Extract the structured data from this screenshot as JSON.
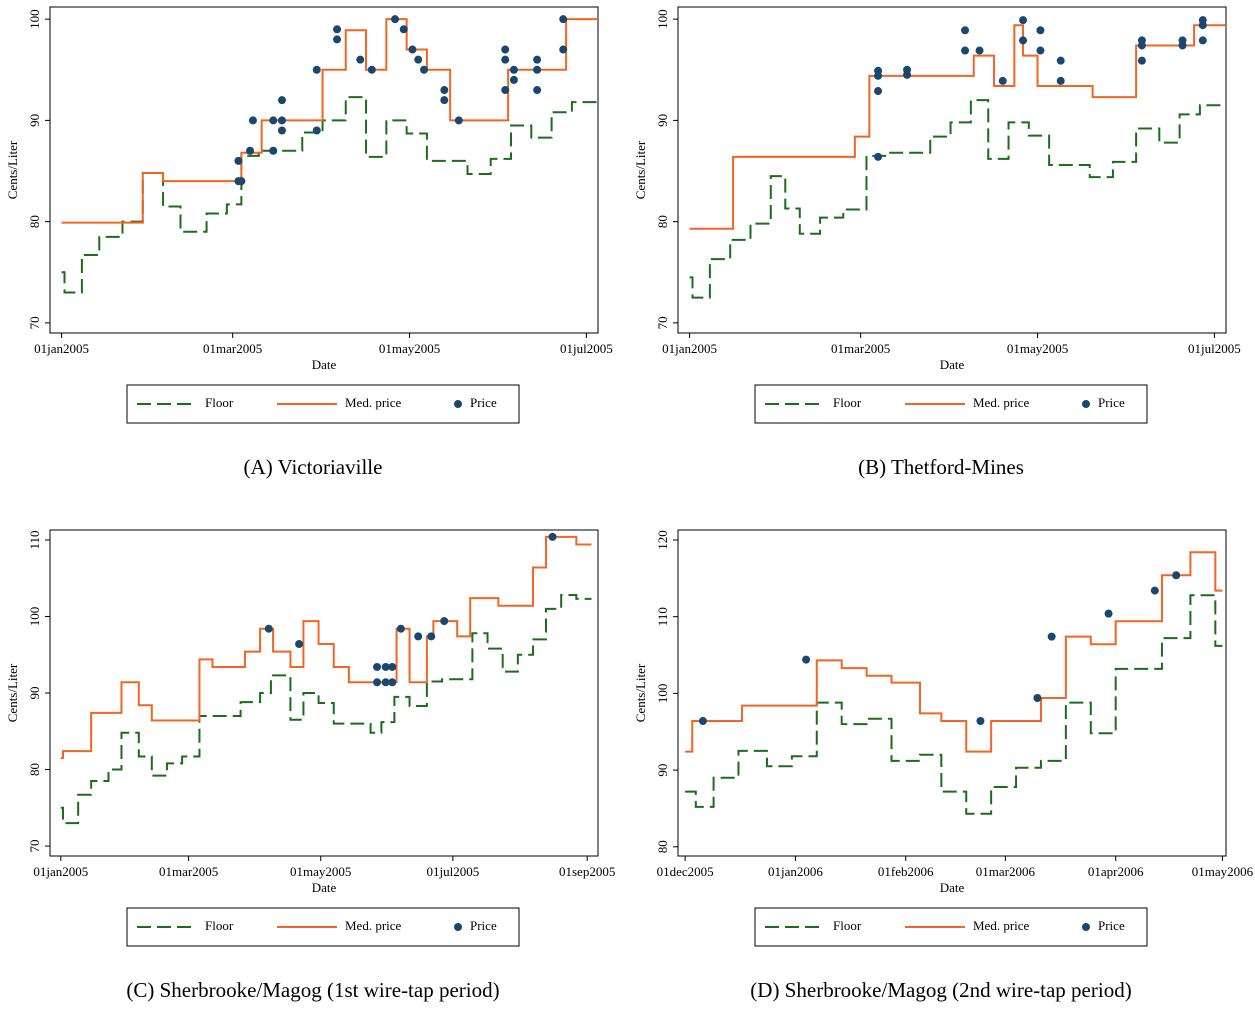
{
  "chart_data": [
    {
      "type": "line",
      "title": "(A) Victoriaville",
      "xlabel": "Date",
      "ylabel": "Cents/Liter",
      "legend": "bottom",
      "xlim": [
        "2004-12-28",
        "2005-07-05"
      ],
      "ylim": [
        69,
        101.2
      ],
      "xticks": [
        {
          "value": "2005-01-01",
          "label": "01jan2005"
        },
        {
          "value": "2005-03-01",
          "label": "01mar2005"
        },
        {
          "value": "2005-05-01",
          "label": "01may2005"
        },
        {
          "value": "2005-07-01",
          "label": "01jul2005"
        }
      ],
      "yticks": [
        70,
        80,
        90,
        100
      ],
      "series": [
        {
          "name": "Floor",
          "color": "#1a6e1a",
          "style": "dash-step",
          "x": [
            "2005-01-01",
            "2005-01-02",
            "2005-01-08",
            "2005-01-14",
            "2005-01-22",
            "2005-01-29",
            "2005-02-05",
            "2005-02-11",
            "2005-02-20",
            "2005-02-27",
            "2005-03-04",
            "2005-03-10",
            "2005-03-25",
            "2005-04-01",
            "2005-04-09",
            "2005-04-16",
            "2005-04-23",
            "2005-04-30",
            "2005-05-07",
            "2005-05-21",
            "2005-05-29",
            "2005-06-05",
            "2005-06-12",
            "2005-06-19",
            "2005-06-26",
            "2005-07-05"
          ],
          "values": [
            75,
            73,
            76.7,
            78.5,
            80,
            84.8,
            81.5,
            79,
            80.8,
            81.7,
            86.5,
            87,
            88.8,
            90,
            92.3,
            86.4,
            90,
            88.7,
            86,
            84.7,
            86.2,
            89.5,
            88.3,
            90.8,
            91.8,
            91.8
          ]
        },
        {
          "name": "Med. price",
          "color": "#f26522",
          "style": "step",
          "x": [
            "2005-01-01",
            "2005-01-29",
            "2005-02-05",
            "2005-03-04",
            "2005-03-11",
            "2005-04-01",
            "2005-04-09",
            "2005-04-16",
            "2005-04-23",
            "2005-04-30",
            "2005-05-07",
            "2005-05-15",
            "2005-06-04",
            "2005-06-24",
            "2005-07-05"
          ],
          "values": [
            79.9,
            84.8,
            84,
            86.8,
            90,
            95,
            98.9,
            95,
            100,
            97,
            95,
            90,
            95,
            100,
            100
          ]
        },
        {
          "name": "Price",
          "color": "#1a476f",
          "style": "dot",
          "x": [
            "2005-03-03",
            "2005-03-04",
            "2005-03-03",
            "2005-03-08",
            "2005-03-07",
            "2005-03-15",
            "2005-03-15",
            "2005-03-18",
            "2005-03-18",
            "2005-03-18",
            "2005-03-30",
            "2005-03-30",
            "2005-04-06",
            "2005-04-06",
            "2005-04-14",
            "2005-04-18",
            "2005-04-26",
            "2005-04-29",
            "2005-05-02",
            "2005-05-04",
            "2005-05-06",
            "2005-05-13",
            "2005-05-13",
            "2005-05-18",
            "2005-06-03",
            "2005-06-03",
            "2005-06-03",
            "2005-06-06",
            "2005-06-06",
            "2005-06-14",
            "2005-06-14",
            "2005-06-14",
            "2005-06-23",
            "2005-06-23"
          ],
          "values": [
            84,
            84,
            86,
            90,
            87,
            90,
            87,
            92,
            90,
            89,
            95,
            89,
            99,
            98,
            96,
            95,
            100,
            99,
            97,
            96,
            95,
            93,
            92,
            90,
            97,
            96,
            93,
            95,
            94,
            96,
            95,
            93,
            100,
            97
          ]
        }
      ]
    },
    {
      "type": "line",
      "title": "(B) Thetford-Mines",
      "xlabel": "Date",
      "ylabel": "Cents/Liter",
      "legend": "bottom",
      "xlim": [
        "2004-12-28",
        "2005-07-05"
      ],
      "ylim": [
        69,
        101.2
      ],
      "xticks": [
        {
          "value": "2005-01-01",
          "label": "01jan2005"
        },
        {
          "value": "2005-03-01",
          "label": "01mar2005"
        },
        {
          "value": "2005-05-01",
          "label": "01may2005"
        },
        {
          "value": "2005-07-01",
          "label": "01jul2005"
        }
      ],
      "yticks": [
        70,
        80,
        90,
        100
      ],
      "series": [
        {
          "name": "Floor",
          "color": "#1a6e1a",
          "style": "dash-step",
          "x": [
            "2005-01-01",
            "2005-01-02",
            "2005-01-08",
            "2005-01-15",
            "2005-01-22",
            "2005-01-29",
            "2005-02-03",
            "2005-02-08",
            "2005-02-15",
            "2005-02-23",
            "2005-03-03",
            "2005-03-10",
            "2005-03-25",
            "2005-04-01",
            "2005-04-08",
            "2005-04-14",
            "2005-04-21",
            "2005-04-28",
            "2005-05-05",
            "2005-05-19",
            "2005-05-27",
            "2005-06-04",
            "2005-06-12",
            "2005-06-19",
            "2005-06-26",
            "2005-07-05"
          ],
          "values": [
            74.5,
            72.5,
            76.3,
            78.2,
            79.8,
            84.5,
            81.3,
            78.8,
            80.4,
            81.2,
            86.5,
            86.8,
            88.4,
            89.8,
            92,
            86.2,
            89.8,
            88.5,
            85.6,
            84.4,
            85.9,
            89.2,
            87.8,
            90.6,
            91.5,
            91.5
          ]
        },
        {
          "name": "Med. price",
          "color": "#f26522",
          "style": "step",
          "x": [
            "2005-01-01",
            "2005-01-16",
            "2005-02-27",
            "2005-03-04",
            "2005-04-09",
            "2005-04-16",
            "2005-04-23",
            "2005-04-26",
            "2005-05-01",
            "2005-05-20",
            "2005-06-04",
            "2005-06-24",
            "2005-07-05"
          ],
          "values": [
            79.3,
            86.4,
            88.4,
            94.4,
            96.4,
            93.4,
            99.4,
            96.4,
            93.4,
            92.3,
            97.4,
            99.4,
            99.4
          ]
        },
        {
          "name": "Price",
          "color": "#1a476f",
          "style": "dot",
          "x": [
            "2005-03-07",
            "2005-03-07",
            "2005-03-07",
            "2005-03-07",
            "2005-03-17",
            "2005-03-17",
            "2005-04-06",
            "2005-04-06",
            "2005-04-11",
            "2005-04-19",
            "2005-04-26",
            "2005-04-26",
            "2005-05-02",
            "2005-05-02",
            "2005-05-09",
            "2005-05-09",
            "2005-06-06",
            "2005-06-06",
            "2005-06-06",
            "2005-06-20",
            "2005-06-20",
            "2005-06-27",
            "2005-06-27",
            "2005-06-27"
          ],
          "values": [
            94.9,
            94.4,
            92.9,
            86.4,
            95,
            94.5,
            98.9,
            96.9,
            96.9,
            93.9,
            99.9,
            97.9,
            98.9,
            96.9,
            95.9,
            93.9,
            97.9,
            97.4,
            95.9,
            97.9,
            97.4,
            99.9,
            99.4,
            97.9
          ]
        }
      ]
    },
    {
      "type": "line",
      "title": "(C) Sherbrooke/Magog (1st wire-tap period)",
      "xlabel": "Date",
      "ylabel": "Cents/Liter",
      "legend": "bottom",
      "xlim": [
        "2004-12-27",
        "2005-09-06"
      ],
      "ylim": [
        68.7,
        111.3
      ],
      "xticks": [
        {
          "value": "2005-01-01",
          "label": "01jan2005"
        },
        {
          "value": "2005-03-01",
          "label": "01mar2005"
        },
        {
          "value": "2005-05-01",
          "label": "01may2005"
        },
        {
          "value": "2005-07-01",
          "label": "01jul2005"
        },
        {
          "value": "2005-09-01",
          "label": "01sep2005"
        }
      ],
      "yticks": [
        70,
        80,
        90,
        100,
        110
      ],
      "series": [
        {
          "name": "Floor",
          "color": "#1a6e1a",
          "style": "dash-step",
          "x": [
            "2005-01-01",
            "2005-01-02",
            "2005-01-09",
            "2005-01-15",
            "2005-01-23",
            "2005-01-29",
            "2005-02-06",
            "2005-02-12",
            "2005-02-19",
            "2005-02-26",
            "2005-03-06",
            "2005-03-25",
            "2005-04-03",
            "2005-04-08",
            "2005-04-17",
            "2005-04-23",
            "2005-04-30",
            "2005-05-07",
            "2005-05-24",
            "2005-05-29",
            "2005-06-04",
            "2005-06-11",
            "2005-06-19",
            "2005-06-26",
            "2005-07-10",
            "2005-07-17",
            "2005-07-24",
            "2005-07-31",
            "2005-08-07",
            "2005-08-13",
            "2005-08-20",
            "2005-08-27",
            "2005-09-03"
          ],
          "values": [
            75,
            73,
            76.7,
            78.5,
            80,
            84.8,
            81.7,
            79.2,
            80.8,
            81.7,
            87,
            88.8,
            90,
            92.3,
            86.5,
            90,
            88.7,
            86,
            84.8,
            86.2,
            89.5,
            88.3,
            91.5,
            91.8,
            97.8,
            95.8,
            92.8,
            95,
            97,
            101,
            102.8,
            102.3,
            102.3
          ]
        },
        {
          "name": "Med. price",
          "color": "#f26522",
          "style": "step",
          "x": [
            "2005-01-01",
            "2005-01-02",
            "2005-01-15",
            "2005-01-29",
            "2005-02-06",
            "2005-02-12",
            "2005-03-06",
            "2005-03-12",
            "2005-03-27",
            "2005-04-03",
            "2005-04-09",
            "2005-04-17",
            "2005-04-23",
            "2005-04-30",
            "2005-05-07",
            "2005-05-14",
            "2005-06-05",
            "2005-06-11",
            "2005-06-19",
            "2005-06-22",
            "2005-07-03",
            "2005-07-09",
            "2005-07-22",
            "2005-08-07",
            "2005-08-13",
            "2005-08-27",
            "2005-09-03"
          ],
          "values": [
            81.5,
            82.4,
            87.4,
            91.4,
            88.4,
            86.4,
            94.4,
            93.4,
            95.4,
            98.4,
            95.4,
            93.4,
            99.4,
            96.4,
            93.4,
            91.4,
            98.4,
            91.4,
            97.4,
            99.4,
            97.4,
            102.4,
            101.4,
            106.4,
            110.4,
            109.4,
            109.4
          ]
        },
        {
          "name": "Price",
          "color": "#1a476f",
          "style": "dot",
          "x": [
            "2005-04-07",
            "2005-04-21",
            "2005-05-27",
            "2005-05-27",
            "2005-05-31",
            "2005-05-31",
            "2005-06-03",
            "2005-06-03",
            "2005-06-07",
            "2005-06-15",
            "2005-06-21",
            "2005-06-27",
            "2005-08-16"
          ],
          "values": [
            98.4,
            96.4,
            91.4,
            93.4,
            93.4,
            91.4,
            93.4,
            91.4,
            98.4,
            97.4,
            97.4,
            99.4,
            110.4
          ]
        }
      ]
    },
    {
      "type": "line",
      "title": "(D) Sherbrooke/Magog (2nd wire-tap period)",
      "xlabel": "Date",
      "ylabel": "Cents/Liter",
      "legend": "bottom",
      "xlim": [
        "2005-11-29",
        "2006-05-02"
      ],
      "ylim": [
        78.8,
        121.3
      ],
      "xticks": [
        {
          "value": "2005-12-01",
          "label": "01dec2005"
        },
        {
          "value": "2006-01-01",
          "label": "01jan2006"
        },
        {
          "value": "2006-02-01",
          "label": "01feb2006"
        },
        {
          "value": "2006-03-01",
          "label": "01mar2006"
        },
        {
          "value": "2006-04-01",
          "label": "01apr2006"
        },
        {
          "value": "2006-05-01",
          "label": "01may2006"
        }
      ],
      "yticks": [
        80,
        90,
        100,
        110,
        120
      ],
      "series": [
        {
          "name": "Floor",
          "color": "#1a6e1a",
          "style": "dash-step",
          "x": [
            "2005-12-01",
            "2005-12-04",
            "2005-12-09",
            "2005-12-16",
            "2005-12-24",
            "2005-12-31",
            "2006-01-07",
            "2006-01-14",
            "2006-01-21",
            "2006-01-28",
            "2006-02-05",
            "2006-02-11",
            "2006-02-18",
            "2006-02-25",
            "2006-03-04",
            "2006-03-11",
            "2006-03-18",
            "2006-03-25",
            "2006-04-01",
            "2006-04-14",
            "2006-04-22",
            "2006-04-29",
            "2006-05-01"
          ],
          "values": [
            87.2,
            85.2,
            89,
            92.5,
            90.5,
            91.8,
            98.8,
            96,
            96.7,
            91.2,
            92,
            87.2,
            84.3,
            87.8,
            90.3,
            91.2,
            98.8,
            94.8,
            103.2,
            107.2,
            112.8,
            106.2,
            106.2
          ]
        },
        {
          "name": "Med. price",
          "color": "#f26522",
          "style": "step",
          "x": [
            "2005-12-01",
            "2005-12-03",
            "2005-12-17",
            "2006-01-07",
            "2006-01-14",
            "2006-01-21",
            "2006-01-28",
            "2006-02-05",
            "2006-02-11",
            "2006-02-18",
            "2006-02-25",
            "2006-03-11",
            "2006-03-18",
            "2006-03-25",
            "2006-04-01",
            "2006-04-14",
            "2006-04-22",
            "2006-04-29",
            "2006-05-01"
          ],
          "values": [
            92.4,
            96.4,
            98.4,
            104.3,
            103.3,
            102.3,
            101.4,
            97.4,
            96.4,
            92.4,
            96.4,
            99.4,
            107.4,
            106.4,
            109.4,
            115.4,
            118.4,
            113.4,
            113.4
          ]
        },
        {
          "name": "Price",
          "color": "#1a476f",
          "style": "dot",
          "x": [
            "2005-12-06",
            "2006-01-04",
            "2006-02-22",
            "2006-03-10",
            "2006-03-14",
            "2006-03-30",
            "2006-04-12",
            "2006-04-18"
          ],
          "values": [
            96.4,
            104.4,
            96.4,
            99.4,
            107.4,
            110.4,
            113.4,
            115.4
          ]
        }
      ]
    }
  ]
}
